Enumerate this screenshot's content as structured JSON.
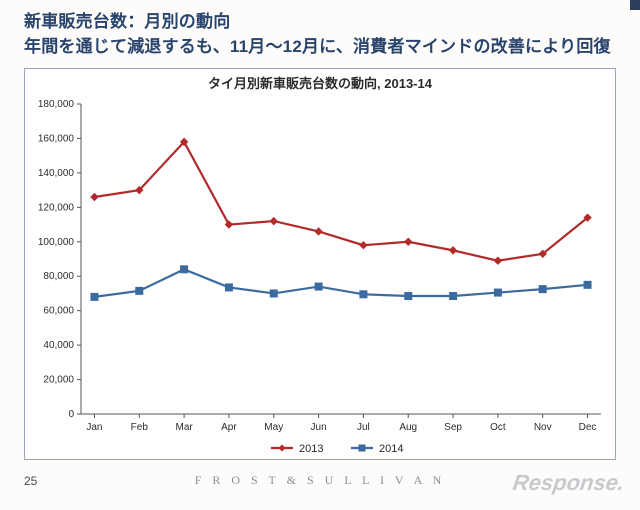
{
  "header": {
    "title_line1": "新車販売台数：月別の動向",
    "title_line2": "年間を通じて減退するも、11月～12月に、消費者マインドの改善により回復"
  },
  "chart": {
    "type": "line",
    "title": "タイ月別新車販売台数の動向, 2013-14",
    "title_fontsize": 13,
    "background_color": "#ffffff",
    "border_color": "#9aa6b6",
    "axis_color": "#555555",
    "grid_color": "#e8e8e8",
    "label_fontsize": 10,
    "ylim": [
      0,
      180000
    ],
    "ytick_step": 20000,
    "yticks": [
      0,
      20000,
      40000,
      60000,
      80000,
      100000,
      120000,
      140000,
      160000,
      180000
    ],
    "ytick_labels": [
      "0",
      "20,000",
      "40,000",
      "60,000",
      "80,000",
      "100,000",
      "120,000",
      "140,000",
      "160,000",
      "180,000"
    ],
    "categories": [
      "Jan",
      "Feb",
      "Mar",
      "Apr",
      "May",
      "Jun",
      "Jul",
      "Aug",
      "Sep",
      "Oct",
      "Nov",
      "Dec"
    ],
    "series": [
      {
        "name": "2013",
        "color": "#b22a2a",
        "marker": "diamond",
        "marker_size": 7,
        "line_width": 2.2,
        "values": [
          126000,
          130000,
          158000,
          110000,
          112000,
          106000,
          98000,
          100000,
          95000,
          89000,
          93000,
          114000
        ]
      },
      {
        "name": "2014",
        "color": "#3b6aa0",
        "marker": "square",
        "marker_size": 7,
        "line_width": 2.2,
        "values": [
          68000,
          71500,
          84000,
          73500,
          70000,
          74000,
          69500,
          68500,
          68500,
          70500,
          72500,
          75000
        ]
      }
    ],
    "legend": {
      "position": "bottom-center",
      "fontsize": 11
    }
  },
  "footer": {
    "page_number": "25",
    "brand": "F R O S T   &   S U L L I V A N",
    "watermark": "Response."
  }
}
